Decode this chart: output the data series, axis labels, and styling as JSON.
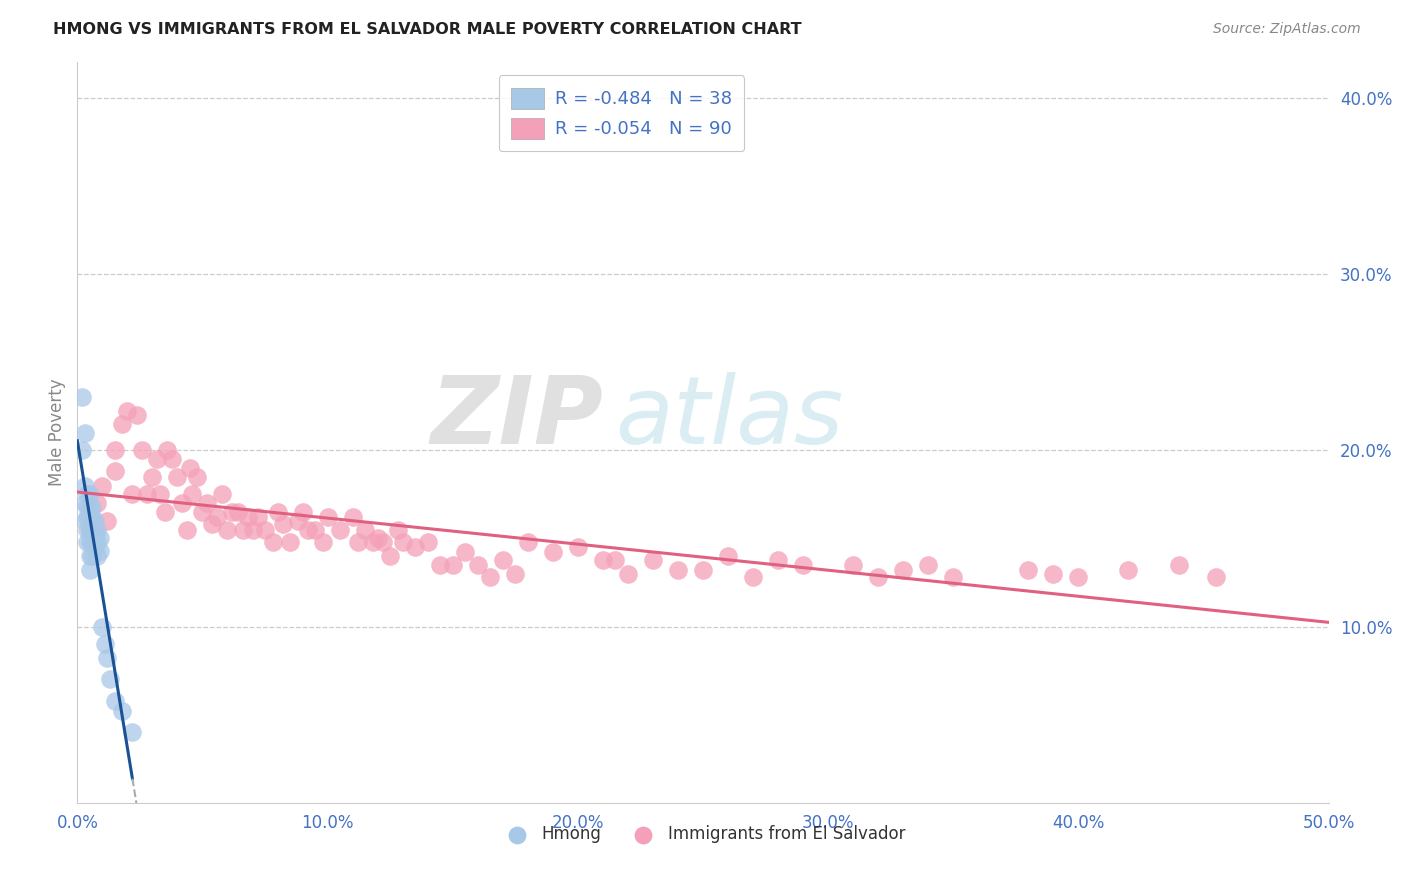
{
  "title": "HMONG VS IMMIGRANTS FROM EL SALVADOR MALE POVERTY CORRELATION CHART",
  "source": "Source: ZipAtlas.com",
  "ylabel": "Male Poverty",
  "xlim": [
    0.0,
    0.5
  ],
  "ylim": [
    0.0,
    0.42
  ],
  "xticks": [
    0.0,
    0.1,
    0.2,
    0.3,
    0.4,
    0.5
  ],
  "yticks": [
    0.1,
    0.2,
    0.3,
    0.4
  ],
  "xtick_labels": [
    "0.0%",
    "10.0%",
    "20.0%",
    "30.0%",
    "40.0%",
    "50.0%"
  ],
  "ytick_labels": [
    "10.0%",
    "20.0%",
    "30.0%",
    "40.0%"
  ],
  "hmong_R": -0.484,
  "hmong_N": 38,
  "salvador_R": -0.054,
  "salvador_N": 90,
  "hmong_color": "#a8c8e8",
  "salvador_color": "#f4a0b8",
  "hmong_line_color": "#1a5296",
  "salvador_line_color": "#e06080",
  "watermark_zip": "ZIP",
  "watermark_atlas": "atlas",
  "hmong_scatter_x": [
    0.002,
    0.002,
    0.003,
    0.003,
    0.003,
    0.003,
    0.004,
    0.004,
    0.004,
    0.004,
    0.004,
    0.005,
    0.005,
    0.005,
    0.005,
    0.005,
    0.005,
    0.005,
    0.006,
    0.006,
    0.006,
    0.006,
    0.006,
    0.007,
    0.007,
    0.007,
    0.008,
    0.008,
    0.008,
    0.009,
    0.009,
    0.01,
    0.011,
    0.012,
    0.013,
    0.015,
    0.018,
    0.022
  ],
  "hmong_scatter_y": [
    0.23,
    0.2,
    0.21,
    0.18,
    0.17,
    0.16,
    0.175,
    0.168,
    0.162,
    0.155,
    0.148,
    0.175,
    0.168,
    0.162,
    0.155,
    0.148,
    0.14,
    0.132,
    0.168,
    0.162,
    0.155,
    0.148,
    0.14,
    0.16,
    0.152,
    0.145,
    0.155,
    0.148,
    0.14,
    0.15,
    0.143,
    0.1,
    0.09,
    0.082,
    0.07,
    0.058,
    0.052,
    0.04
  ],
  "salvador_scatter_x": [
    0.005,
    0.008,
    0.01,
    0.012,
    0.015,
    0.015,
    0.018,
    0.02,
    0.022,
    0.024,
    0.026,
    0.028,
    0.03,
    0.032,
    0.033,
    0.035,
    0.036,
    0.038,
    0.04,
    0.042,
    0.044,
    0.045,
    0.046,
    0.048,
    0.05,
    0.052,
    0.054,
    0.056,
    0.058,
    0.06,
    0.062,
    0.064,
    0.066,
    0.068,
    0.07,
    0.072,
    0.075,
    0.078,
    0.08,
    0.082,
    0.085,
    0.088,
    0.09,
    0.092,
    0.095,
    0.098,
    0.1,
    0.105,
    0.11,
    0.112,
    0.115,
    0.118,
    0.12,
    0.122,
    0.125,
    0.128,
    0.13,
    0.135,
    0.14,
    0.145,
    0.15,
    0.155,
    0.16,
    0.165,
    0.17,
    0.175,
    0.18,
    0.19,
    0.2,
    0.21,
    0.215,
    0.22,
    0.23,
    0.24,
    0.25,
    0.26,
    0.27,
    0.28,
    0.29,
    0.31,
    0.32,
    0.33,
    0.34,
    0.35,
    0.38,
    0.39,
    0.4,
    0.42,
    0.44,
    0.455
  ],
  "salvador_scatter_y": [
    0.155,
    0.17,
    0.18,
    0.16,
    0.2,
    0.188,
    0.215,
    0.222,
    0.175,
    0.22,
    0.2,
    0.175,
    0.185,
    0.195,
    0.175,
    0.165,
    0.2,
    0.195,
    0.185,
    0.17,
    0.155,
    0.19,
    0.175,
    0.185,
    0.165,
    0.17,
    0.158,
    0.162,
    0.175,
    0.155,
    0.165,
    0.165,
    0.155,
    0.162,
    0.155,
    0.162,
    0.155,
    0.148,
    0.165,
    0.158,
    0.148,
    0.16,
    0.165,
    0.155,
    0.155,
    0.148,
    0.162,
    0.155,
    0.162,
    0.148,
    0.155,
    0.148,
    0.15,
    0.148,
    0.14,
    0.155,
    0.148,
    0.145,
    0.148,
    0.135,
    0.135,
    0.142,
    0.135,
    0.128,
    0.138,
    0.13,
    0.148,
    0.142,
    0.145,
    0.138,
    0.138,
    0.13,
    0.138,
    0.132,
    0.132,
    0.14,
    0.128,
    0.138,
    0.135,
    0.135,
    0.128,
    0.132,
    0.135,
    0.128,
    0.132,
    0.13,
    0.128,
    0.132,
    0.135,
    0.128
  ]
}
